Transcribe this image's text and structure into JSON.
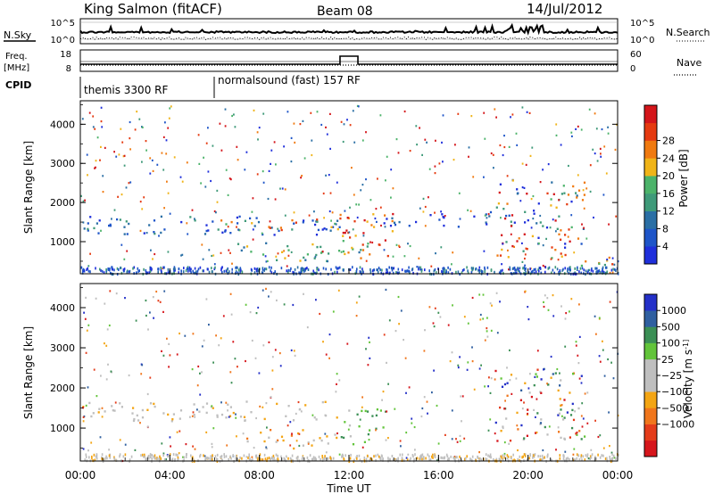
{
  "header": {
    "station": "King Salmon (fitACF)",
    "beam": "Beam 08",
    "date": "14/Jul/2012"
  },
  "colors": {
    "power_scale": [
      "#1f2fdb",
      "#1e55c8",
      "#2a6fa5",
      "#3f9a79",
      "#4cb36a",
      "#f0b418",
      "#f07a10",
      "#e53a10",
      "#d4151a"
    ],
    "velocity_scale": [
      "#2430c8",
      "#2f5fa0",
      "#3b8f55",
      "#62c43a",
      "#bfbfbf",
      "#bfbfbf",
      "#f3a514",
      "#f0761c",
      "#e43c1a",
      "#d6161c"
    ],
    "ground_scatter": "#bfbfbf"
  },
  "top_panels": {
    "nsky_label": "N.Sky",
    "nsearch_label": "N.Search",
    "nsky_ticks": [
      "10^5",
      "10^0"
    ],
    "nsearch_ticks": [
      "10^5",
      "10^0"
    ],
    "freq_label": "Freq.",
    "freq_unit": "[MHz]",
    "freq_ticks": [
      "18",
      "8"
    ],
    "nave_label": "Nave",
    "nave_ticks": [
      "60",
      "0"
    ],
    "cpid_label": "CPID",
    "cpid_modes": [
      {
        "name": "themis 3300 RF",
        "start": "00:00",
        "end": "06:00"
      },
      {
        "name": "normalsound (fast) 157 RF",
        "start": "06:00",
        "end": "24:00"
      }
    ]
  },
  "chart_data": [
    {
      "type": "heatmap",
      "panel": "power",
      "ylabel": "Slant Range [km]",
      "ylim": [
        180,
        4600
      ],
      "y_ticks": [
        "1000",
        "2000",
        "3000",
        "4000"
      ],
      "xlim": [
        "00:00",
        "24:00"
      ],
      "colorbar_label": "Power [dB]",
      "colorbar_ticks": [
        "4",
        "8",
        "12",
        "16",
        "20",
        "24",
        "28"
      ],
      "features": [
        {
          "t0": 0.0,
          "t1": 11.8,
          "r0": 1200,
          "r1": 1700,
          "level": "low-mid"
        },
        {
          "t0": 6.0,
          "t1": 11.8,
          "r0": 1300,
          "r1": 1600,
          "level": "mid-high"
        },
        {
          "t0": 7.0,
          "t1": 13.0,
          "r0": 500,
          "r1": 1000,
          "level": "mid"
        },
        {
          "t0": 11.5,
          "t1": 14.0,
          "r0": 600,
          "r1": 1800,
          "level": "high"
        },
        {
          "t0": 13.5,
          "t1": 18.5,
          "r0": 1400,
          "r1": 1800,
          "level": "low"
        },
        {
          "t0": 18.5,
          "t1": 22.5,
          "r0": 600,
          "r1": 2600,
          "level": "mixed"
        },
        {
          "t0": 22.0,
          "t1": 24.0,
          "r0": 300,
          "r1": 700,
          "level": "mid-high"
        }
      ]
    },
    {
      "type": "heatmap",
      "panel": "velocity",
      "ylabel": "Slant Range [km]",
      "ylim": [
        180,
        4600
      ],
      "y_ticks": [
        "1000",
        "2000",
        "3000",
        "4000"
      ],
      "xlim": [
        "00:00",
        "24:00"
      ],
      "colorbar_label": "Velocity [m s^-1]",
      "colorbar_ticks": [
        "1000",
        "500",
        "100",
        "25",
        "−25",
        "−100",
        "−500",
        "−1000"
      ],
      "features": [
        {
          "t0": 0.0,
          "t1": 12.0,
          "r0": 1200,
          "r1": 1700,
          "kind": "ground scatter"
        },
        {
          "t0": 7.0,
          "t1": 11.5,
          "r0": 500,
          "r1": 1000,
          "kind": "negative slow"
        },
        {
          "t0": 11.5,
          "t1": 13.5,
          "r0": 600,
          "r1": 1500,
          "kind": "positive slow"
        },
        {
          "t0": 18.5,
          "t1": 22.5,
          "r0": 700,
          "r1": 2500,
          "kind": "mixed"
        }
      ]
    }
  ],
  "x_axis": {
    "label": "Time UT",
    "ticks": [
      "00:00",
      "04:00",
      "08:00",
      "12:00",
      "16:00",
      "20:00",
      "00:00"
    ]
  }
}
